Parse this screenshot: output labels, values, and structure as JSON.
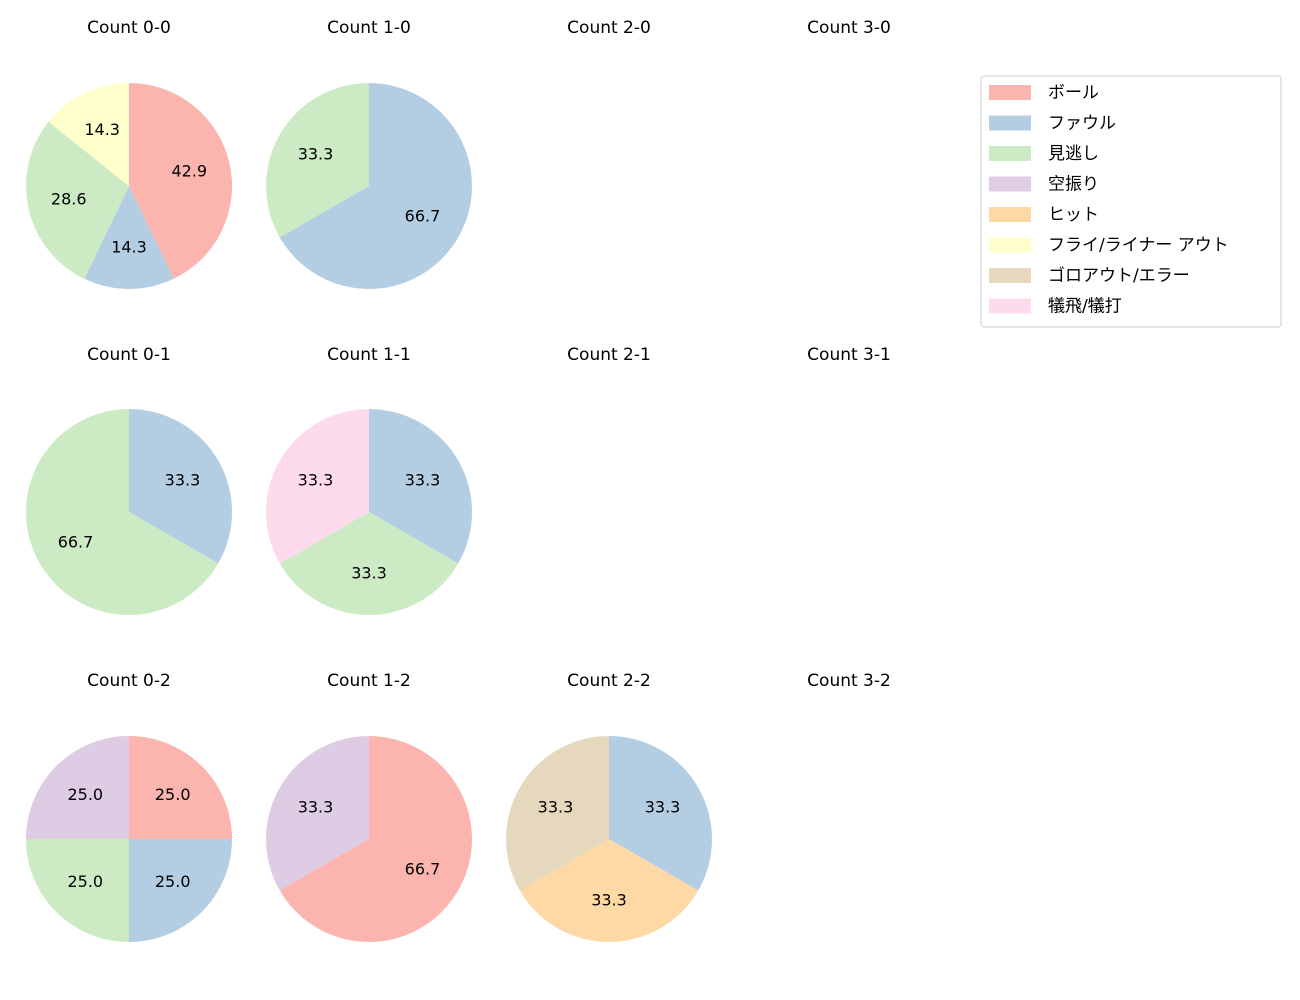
{
  "legend": {
    "labels": [
      "ボール",
      "ファウル",
      "見逃し",
      "空振り",
      "ヒット",
      "フライ/ライナー アウト",
      "ゴロアウト/エラー",
      "犠飛/犠打"
    ],
    "colors": [
      "#fbb4ae",
      "#b3cde3",
      "#ccebc5",
      "#decbe4",
      "#fed9a6",
      "#ffffcc",
      "#e5d8bd",
      "#fddaec"
    ]
  },
  "chart_data": [
    {
      "type": "pie",
      "title": "Count 0-0",
      "categories": [
        "ボール",
        "ファウル",
        "見逃し",
        "フライ/ライナー アウト"
      ],
      "values": [
        42.9,
        14.3,
        28.6,
        14.3
      ],
      "value_labels": [
        "42.9",
        "14.3",
        "28.6",
        "14.3"
      ],
      "colors": [
        "#fbb4ae",
        "#b3cde3",
        "#ccebc5",
        "#ffffcc"
      ]
    },
    {
      "type": "pie",
      "title": "Count 1-0",
      "categories": [
        "ファウル",
        "見逃し"
      ],
      "values": [
        66.7,
        33.3
      ],
      "value_labels": [
        "66.7",
        "33.3"
      ],
      "colors": [
        "#b3cde3",
        "#ccebc5"
      ]
    },
    {
      "type": "pie",
      "title": "Count 2-0"
    },
    {
      "type": "pie",
      "title": "Count 3-0"
    },
    {
      "type": "pie",
      "title": "Count 0-1",
      "categories": [
        "ファウル",
        "見逃し"
      ],
      "values": [
        33.3,
        66.7
      ],
      "value_labels": [
        "33.3",
        "66.7"
      ],
      "colors": [
        "#b3cde3",
        "#ccebc5"
      ]
    },
    {
      "type": "pie",
      "title": "Count 1-1",
      "categories": [
        "ファウル",
        "見逃し",
        "犠飛/犠打"
      ],
      "values": [
        33.3,
        33.3,
        33.3
      ],
      "value_labels": [
        "33.3",
        "33.3",
        "33.3"
      ],
      "colors": [
        "#b3cde3",
        "#ccebc5",
        "#fddaec"
      ]
    },
    {
      "type": "pie",
      "title": "Count 2-1"
    },
    {
      "type": "pie",
      "title": "Count 3-1"
    },
    {
      "type": "pie",
      "title": "Count 0-2",
      "categories": [
        "ボール",
        "ファウル",
        "見逃し",
        "空振り"
      ],
      "values": [
        25,
        25,
        25,
        25
      ],
      "value_labels": [
        "25.0",
        "25.0",
        "25.0",
        "25.0"
      ],
      "colors": [
        "#fbb4ae",
        "#b3cde3",
        "#ccebc5",
        "#decbe4"
      ]
    },
    {
      "type": "pie",
      "title": "Count 1-2",
      "categories": [
        "ボール",
        "空振り"
      ],
      "values": [
        66.7,
        33.3
      ],
      "value_labels": [
        "66.7",
        "33.3"
      ],
      "colors": [
        "#fbb4ae",
        "#decbe4"
      ]
    },
    {
      "type": "pie",
      "title": "Count 2-2",
      "categories": [
        "ファウル",
        "ヒット",
        "ゴロアウト/エラー"
      ],
      "values": [
        33.3,
        33.3,
        33.3
      ],
      "value_labels": [
        "33.3",
        "33.3",
        "33.3"
      ],
      "colors": [
        "#b3cde3",
        "#fed9a6",
        "#e5d8bd"
      ]
    },
    {
      "type": "pie",
      "title": "Count 3-2"
    }
  ]
}
